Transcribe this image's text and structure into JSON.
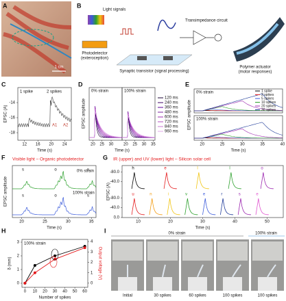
{
  "panel_a": {
    "letter": "A",
    "scale": "1 cm"
  },
  "panel_b": {
    "letter": "B",
    "light": "Light signals",
    "photodetector": "Photodetector",
    "photodetector_sub": "(exteroception)",
    "transistor": "Synaptic transistor (signal processing)",
    "circuit": "Transimpedance circuit",
    "actuator": "Polymer actuator",
    "actuator_sub": "(motor responses)"
  },
  "panel_c": {
    "letter": "C",
    "ylabel": "EPSC (A)",
    "xlabel": "Time (s)",
    "one": "1 spike",
    "two": "2 spikes",
    "a1": "A1",
    "a2": "A2",
    "xlim": [
      10,
      26
    ],
    "xticks": [
      12,
      16,
      20,
      24
    ],
    "ylim": [
      -19,
      -12
    ],
    "yticks": [
      -14,
      -16,
      -18
    ]
  },
  "panel_d": {
    "letter": "D",
    "ylabel": "EPSC amplitude",
    "xlabel": "Time (s)",
    "left": "0% strain",
    "right": "100% strain",
    "xlim": [
      18,
      36
    ],
    "xticks_left": [
      20,
      25,
      30
    ],
    "xticks_right": [
      20,
      25,
      30,
      35
    ],
    "legend": [
      "120 ms",
      "240 ms",
      "360 ms",
      "480 ms",
      "600 ms",
      "720 ms",
      "840 ms",
      "960 ms"
    ]
  },
  "panel_e": {
    "letter": "E",
    "ylabel": "EPSC amplitude",
    "xlabel": "Time (s)",
    "top": "0% strain",
    "bottom": "100% strain",
    "xlim": [
      18,
      40
    ],
    "xticks": [
      20,
      25,
      30,
      35,
      40
    ],
    "legend": [
      {
        "name": "1 spike",
        "color": "#000000"
      },
      {
        "name": "2 spikes",
        "color": "#e41a1c"
      },
      {
        "name": "5 spikes",
        "color": "#3b5bdb"
      },
      {
        "name": "10 spikes",
        "color": "#2ca02c"
      },
      {
        "name": "20 spikes",
        "color": "#9c27b0"
      },
      {
        "name": "30 spikes",
        "color": "#1f3b99"
      }
    ]
  },
  "panel_f": {
    "letter": "F",
    "title": "Visible light – Organic photodetector",
    "ylabel": "EPSC amplitude",
    "xlabel": "Time (s)",
    "top": "0% strain",
    "bottom": "100% strain",
    "xlim": [
      18,
      36
    ],
    "xticks": [
      20,
      25,
      30,
      35
    ],
    "letters_top": [
      "s",
      "o",
      "s"
    ],
    "letters_bottom": [
      "s",
      "o",
      "s"
    ]
  },
  "panel_g": {
    "letter": "G",
    "title": "IR (upper) and UV (lower) light – Silicon solar cell",
    "ylabel": "EPSC (A)",
    "xlabel": "Time (s)",
    "xlim": [
      5,
      55
    ],
    "xticks": [
      10,
      20,
      30,
      40,
      50
    ],
    "ylim": [
      -100,
      0
    ],
    "yticks": [
      {
        "value": -80,
        "label": "-80.0"
      },
      {
        "value": -40,
        "label": "-40.0"
      },
      {
        "value": 0,
        "label": "0.0"
      }
    ],
    "letters_top": [
      "h",
      "e",
      "l",
      "l",
      "o"
    ],
    "letters_bottom": [
      "u",
      "n",
      "i",
      "v",
      "e",
      "r",
      "s",
      "e"
    ]
  },
  "panel_h": {
    "letter": "H",
    "chart_data": {
      "type": "line",
      "subtitle": "100% strain",
      "xlabel": "Number of spikes",
      "ylabel": "δ (mm)",
      "y2label": "Output voltage (V)",
      "x": [
        0,
        10,
        30,
        60
      ],
      "series": [
        {
          "name": "δ",
          "color": "#000000",
          "values": [
            0,
            1.3,
            2.0,
            2.7
          ]
        },
        {
          "name": "Output voltage",
          "color": "#e41a1c",
          "axis": "y2",
          "values": [
            0,
            1.0,
            2.3,
            3.4
          ]
        }
      ],
      "xlim": [
        -3,
        63
      ],
      "xticks": [
        0,
        10,
        20,
        30,
        40,
        50,
        60
      ],
      "ylim": [
        -0.3,
        3.2
      ],
      "yticks": [
        0,
        1,
        2,
        3
      ],
      "y2lim": [
        -0.4,
        4.2
      ],
      "y2ticks": [
        0,
        1,
        2,
        3,
        4
      ]
    }
  },
  "panel_i": {
    "letter": "I",
    "left": "0% strain",
    "right": "100% strain",
    "labels": [
      "Initial",
      "30 spikes",
      "60 spikes",
      "100 spikes",
      "100 spikes"
    ]
  }
}
